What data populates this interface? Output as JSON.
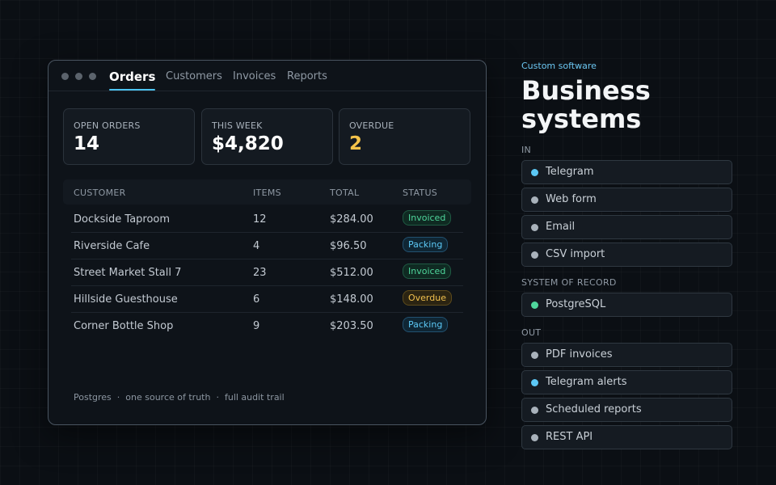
{
  "window": {
    "tabs": [
      {
        "label": "Orders",
        "active": true
      },
      {
        "label": "Customers"
      },
      {
        "label": "Invoices"
      },
      {
        "label": "Reports"
      }
    ],
    "stats": [
      {
        "label": "OPEN ORDERS",
        "value": "14"
      },
      {
        "label": "THIS WEEK",
        "value": "$4,820"
      },
      {
        "label": "OVERDUE",
        "value": "2",
        "color": "#f4c34a"
      }
    ],
    "table": {
      "headers": [
        "CUSTOMER",
        "ITEMS",
        "TOTAL",
        "STATUS"
      ],
      "rows": [
        {
          "customer": "Dockside Taproom",
          "items": "12",
          "total": "$284.00",
          "status": "Invoiced"
        },
        {
          "customer": "Riverside Cafe",
          "items": "4",
          "total": "$96.50",
          "status": "Packing"
        },
        {
          "customer": "Street Market Stall 7",
          "items": "23",
          "total": "$512.00",
          "status": "Invoiced"
        },
        {
          "customer": "Hillside Guesthouse",
          "items": "6",
          "total": "$148.00",
          "status": "Overdue"
        },
        {
          "customer": "Corner Bottle Shop",
          "items": "9",
          "total": "$203.50",
          "status": "Packing"
        }
      ]
    },
    "footer": {
      "parts": [
        "Postgres",
        "one source of truth",
        "full audit trail"
      ],
      "separator": "·"
    }
  },
  "panel": {
    "eyebrow": "Custom software",
    "headline_line1": "Business",
    "headline_line2": "systems",
    "sections": {
      "in": {
        "label": "IN",
        "items": [
          {
            "label": "Telegram",
            "dot": "#5cc8f5"
          },
          {
            "label": "Web form",
            "dot": "#a9b2bb"
          },
          {
            "label": "Email",
            "dot": "#a9b2bb"
          },
          {
            "label": "CSV import",
            "dot": "#a9b2bb"
          }
        ]
      },
      "record": {
        "label": "SYSTEM OF RECORD",
        "items": [
          {
            "label": "PostgreSQL",
            "dot": "#4fd69c"
          }
        ]
      },
      "out": {
        "label": "OUT",
        "items": [
          {
            "label": "PDF invoices",
            "dot": "#a9b2bb"
          },
          {
            "label": "Telegram alerts",
            "dot": "#5cc8f5"
          },
          {
            "label": "Scheduled reports",
            "dot": "#a9b2bb"
          },
          {
            "label": "REST API",
            "dot": "#a9b2bb"
          }
        ]
      }
    }
  }
}
